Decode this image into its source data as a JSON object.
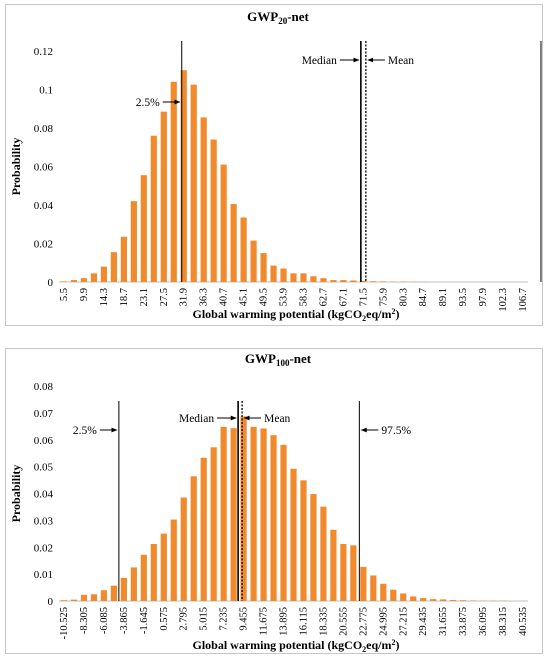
{
  "chart_data": [
    {
      "type": "bar",
      "title_main": "GWP",
      "title_sub": "20",
      "title_suffix": "-net",
      "xlabel_pre": "Global warming potential (kgCO",
      "xlabel_sub": "2",
      "xlabel_mid": "eq/m",
      "xlabel_sup": "2",
      "xlabel_post": ")",
      "ylabel": "Probability",
      "ylim": [
        0,
        0.12
      ],
      "yticks": [
        "0",
        "0.02",
        "0.04",
        "0.06",
        "0.08",
        "0.1",
        "0.12"
      ],
      "bar_color": "#f08a2c",
      "tick_labels": [
        "5.5",
        "9.9",
        "14.3",
        "18.7",
        "23.1",
        "27.5",
        "31.9",
        "36.3",
        "40.7",
        "45.1",
        "49.5",
        "53.9",
        "58.3",
        "62.7",
        "67.1",
        "71.5",
        "75.9",
        "80.3",
        "84.7",
        "89.1",
        "93.5",
        "97.9",
        "102.3",
        "106.7"
      ],
      "values": [
        0.0003,
        0.001,
        0.002,
        0.0045,
        0.008,
        0.0155,
        0.0235,
        0.042,
        0.0555,
        0.076,
        0.0885,
        0.104,
        0.11,
        0.1025,
        0.0855,
        0.074,
        0.061,
        0.0405,
        0.0335,
        0.0215,
        0.015,
        0.0085,
        0.007,
        0.0045,
        0.0045,
        0.003,
        0.002,
        0.001,
        0.001,
        0.0008,
        0.0006,
        0.0004,
        0.0003,
        0.0002,
        0.0002,
        0.0001,
        0.0001,
        0,
        0,
        0,
        0,
        0,
        0,
        0,
        0,
        0,
        0
      ],
      "markers": {
        "p2_5": 11.8,
        "median": 29.75,
        "mean": 30.25,
        "p97_5": 47.8
      },
      "labels": {
        "p2_5": "2.5%",
        "median": "Median",
        "mean": "Mean",
        "p97_5": "97.5%"
      }
    },
    {
      "type": "bar",
      "title_main": "GWP",
      "title_sub": "100",
      "title_suffix": "-net",
      "xlabel_pre": "Global warming potential (kgCO",
      "xlabel_sub": "2",
      "xlabel_mid": "eq/m",
      "xlabel_sup": "2",
      "xlabel_post": ")",
      "ylabel": "Probability",
      "ylim": [
        0,
        0.08
      ],
      "yticks": [
        "0",
        "0.01",
        "0.02",
        "0.03",
        "0.04",
        "0.05",
        "0.06",
        "0.07",
        "0.08"
      ],
      "bar_color": "#f08a2c",
      "tick_labels": [
        "-10.525",
        "-8.305",
        "-6.085",
        "-3.865",
        "-1.645",
        "0.575",
        "2.795",
        "5.015",
        "7.235",
        "9.455",
        "11.675",
        "13.895",
        "16.115",
        "18.335",
        "20.555",
        "22.775",
        "24.995",
        "27.215",
        "29.435",
        "31.655",
        "33.875",
        "36.095",
        "38.315",
        "40.535"
      ],
      "values": [
        0.0003,
        0.0005,
        0.0023,
        0.0025,
        0.004,
        0.0057,
        0.0086,
        0.0125,
        0.0172,
        0.0212,
        0.0251,
        0.0303,
        0.0385,
        0.0464,
        0.0533,
        0.0572,
        0.0648,
        0.0643,
        0.0687,
        0.0648,
        0.0642,
        0.0617,
        0.0581,
        0.0492,
        0.0449,
        0.0398,
        0.0351,
        0.0265,
        0.0212,
        0.0207,
        0.0127,
        0.0095,
        0.0064,
        0.0042,
        0.0028,
        0.0017,
        0.0011,
        0.0007,
        0.0006,
        0.0004,
        0.0003,
        0.0002,
        0.0001,
        0.0001,
        0.0001,
        0,
        0
      ],
      "markers": {
        "p2_5": 5.5,
        "median": 17.45,
        "mean": 17.85,
        "p97_5": 29.6
      },
      "labels": {
        "p2_5": "2.5%",
        "median": "Median",
        "mean": "Mean",
        "p97_5": "97.5%"
      }
    }
  ]
}
